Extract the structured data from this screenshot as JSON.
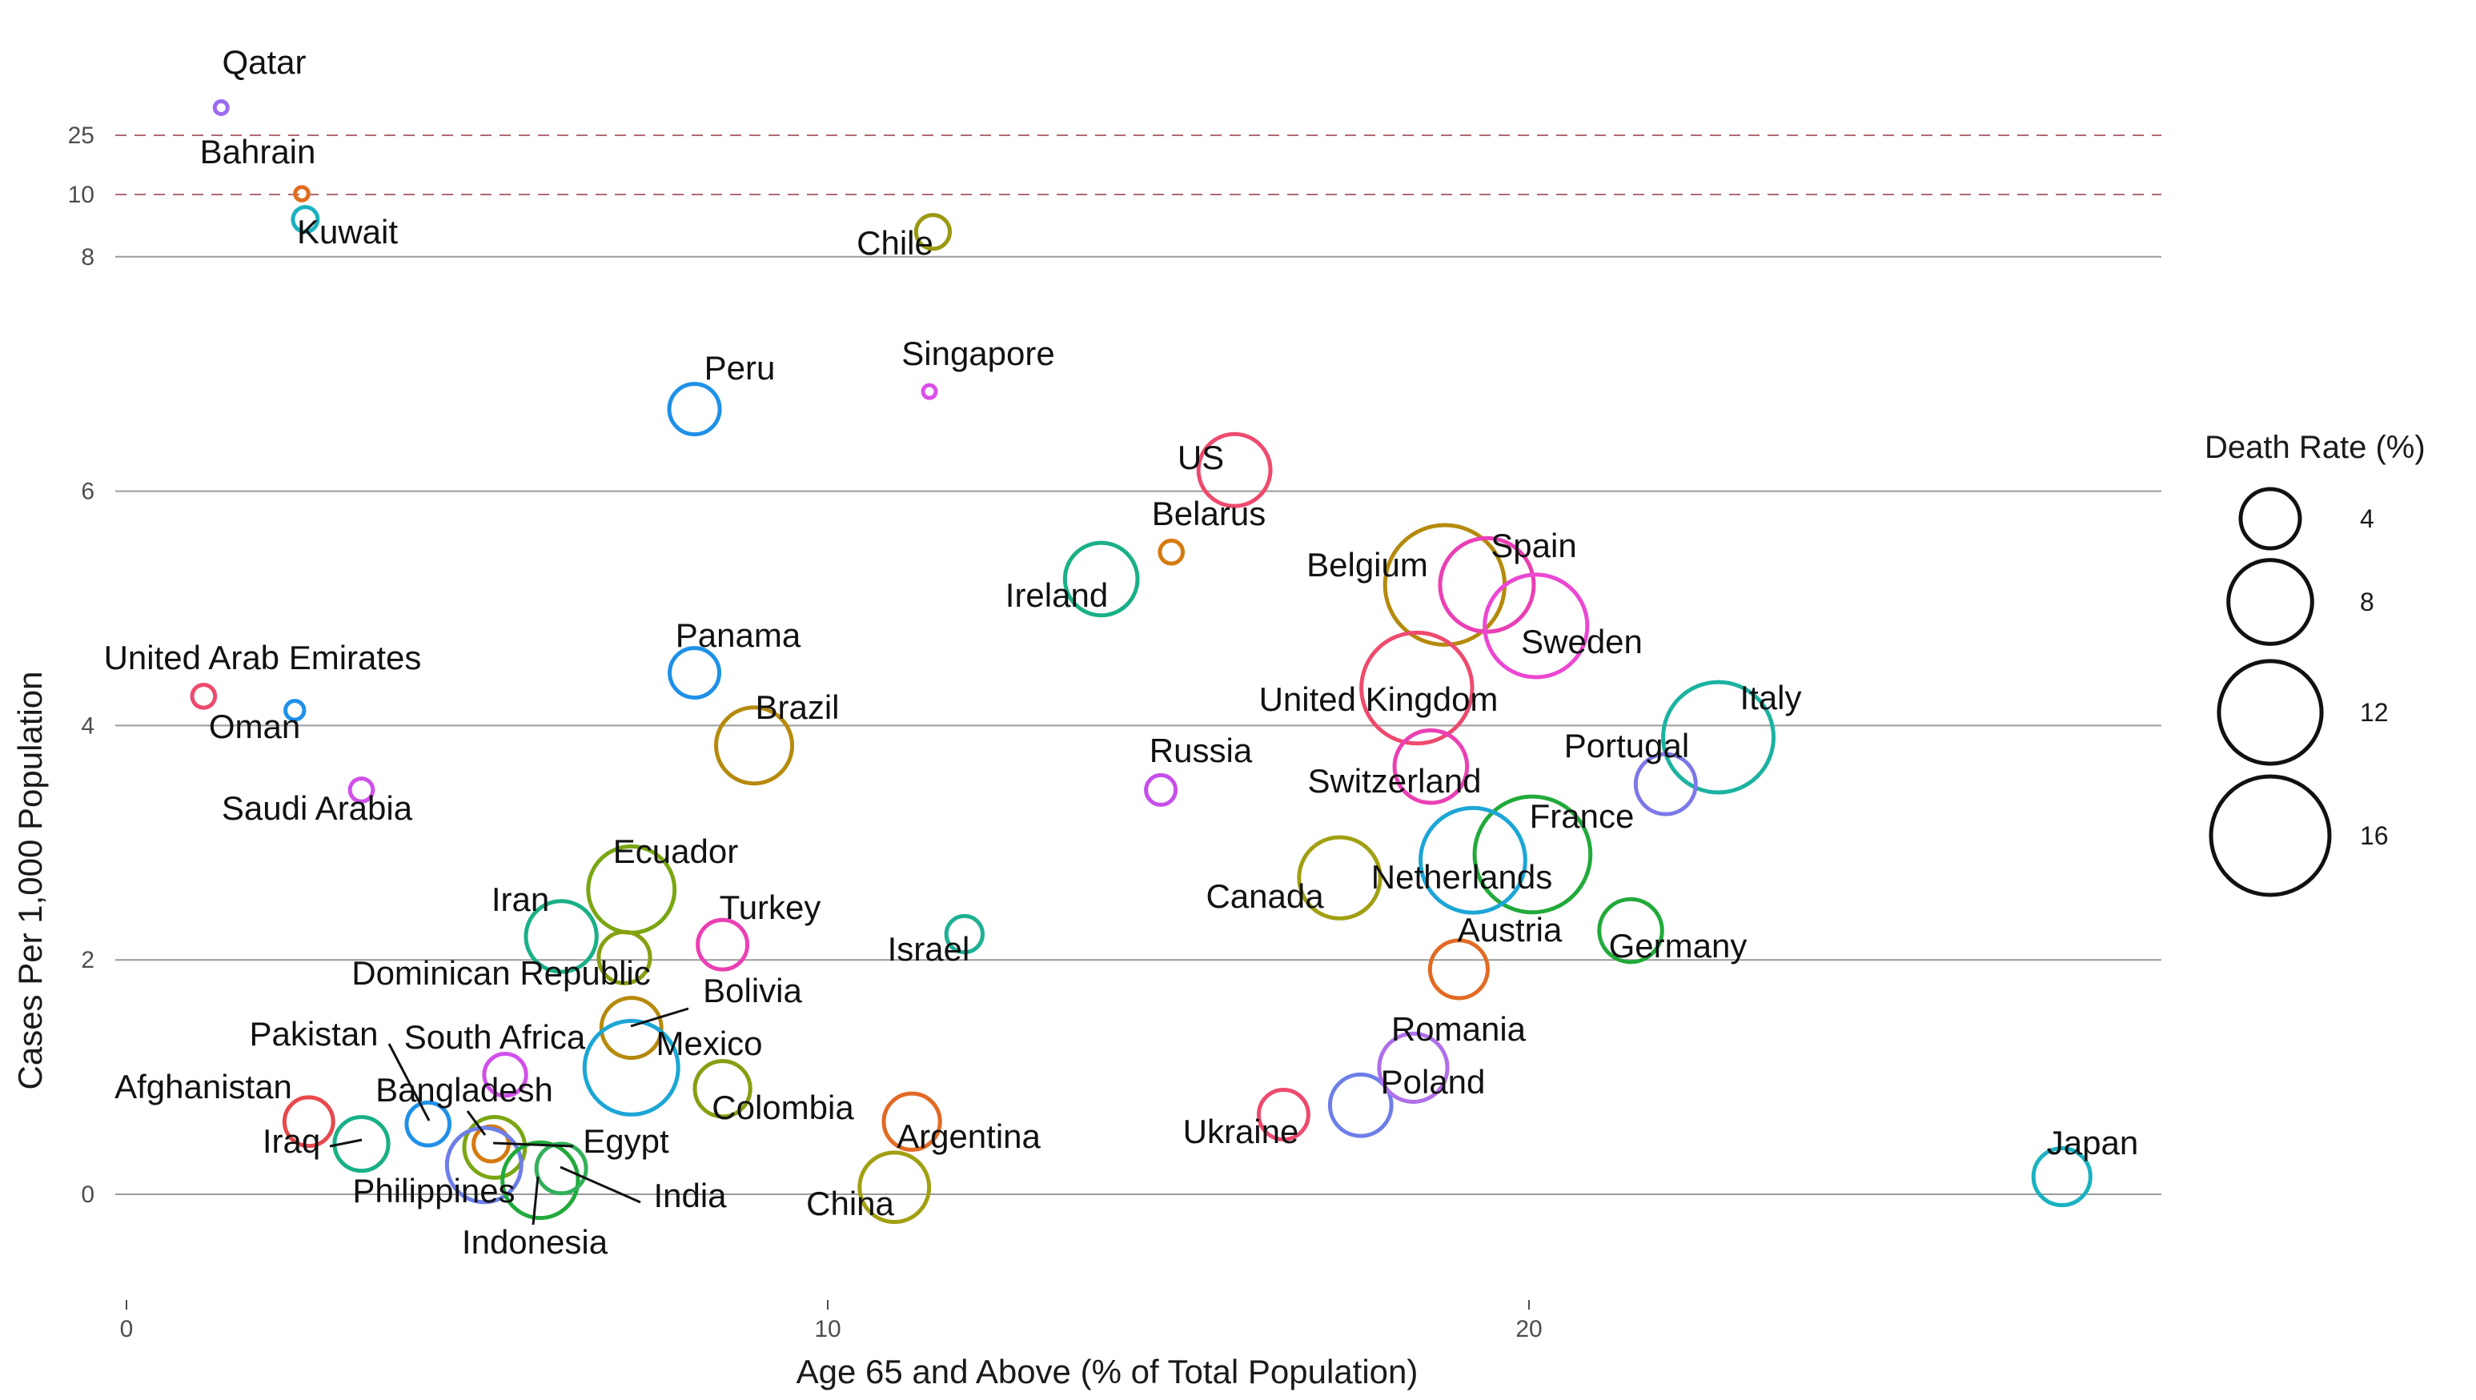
{
  "chart_data": {
    "type": "scatter",
    "xlabel": "Age 65 and Above (% of Total Population)",
    "ylabel": "Cases Per 1,000 Population",
    "xlim": [
      0,
      29
    ],
    "x_ticks": [
      0,
      10,
      20
    ],
    "y_ticks_linear": [
      0,
      2,
      4,
      6,
      8
    ],
    "y_ticks_upper": [
      10,
      25
    ],
    "y_scale_note": "broken axis: linear 0-8, compressed segment above 8 (8, 10, 25)",
    "dashed_reference_lines": [
      10,
      25
    ],
    "legend": {
      "title": "Death Rate (%)",
      "placement": "right",
      "sizes": [
        4,
        8,
        12,
        16
      ]
    },
    "points": [
      {
        "name": "Qatar",
        "x": 1.35,
        "y": 32.0,
        "death": 0.1,
        "color": "#9C6BF0"
      },
      {
        "name": "Bahrain",
        "x": 2.5,
        "y": 10.2,
        "death": 0.2,
        "color": "#E06C1F"
      },
      {
        "name": "Kuwait",
        "x": 2.55,
        "y": 9.2,
        "death": 0.7,
        "color": "#1BB2C0"
      },
      {
        "name": "Chile",
        "x": 11.5,
        "y": 8.8,
        "death": 1.3,
        "color": "#9A9A12"
      },
      {
        "name": "Singapore",
        "x": 11.45,
        "y": 6.85,
        "death": 0.1,
        "color": "#DA4FEA"
      },
      {
        "name": "Peru",
        "x": 8.1,
        "y": 6.7,
        "death": 2.9,
        "color": "#1E90E8"
      },
      {
        "name": "US",
        "x": 15.8,
        "y": 6.18,
        "death": 5.9,
        "color": "#EE4A6E"
      },
      {
        "name": "Belarus",
        "x": 14.9,
        "y": 5.48,
        "death": 0.6,
        "color": "#D57A0F"
      },
      {
        "name": "Ireland",
        "x": 13.9,
        "y": 5.25,
        "death": 6.0,
        "color": "#19B087"
      },
      {
        "name": "Belgium",
        "x": 18.8,
        "y": 5.2,
        "death": 16.3,
        "color": "#B58A0C"
      },
      {
        "name": "Spain",
        "x": 19.4,
        "y": 5.2,
        "death": 10.0,
        "color": "#EB3FB4"
      },
      {
        "name": "Sweden",
        "x": 20.1,
        "y": 4.85,
        "death": 12.0,
        "color": "#EC47D2"
      },
      {
        "name": "United Kingdom",
        "x": 18.4,
        "y": 4.32,
        "death": 14.0,
        "color": "#EE4A6E"
      },
      {
        "name": "Italy",
        "x": 22.7,
        "y": 3.9,
        "death": 13.9,
        "color": "#1BB2A0"
      },
      {
        "name": "Switzerland",
        "x": 18.6,
        "y": 3.65,
        "death": 6.0,
        "color": "#EB3FB4"
      },
      {
        "name": "Portugal",
        "x": 21.95,
        "y": 3.5,
        "death": 4.1,
        "color": "#7D78E8"
      },
      {
        "name": "Russia",
        "x": 14.75,
        "y": 3.45,
        "death": 1.0,
        "color": "#C54FEA"
      },
      {
        "name": "France",
        "x": 20.05,
        "y": 2.9,
        "death": 15.3,
        "color": "#21AA3A"
      },
      {
        "name": "Netherlands",
        "x": 19.2,
        "y": 2.85,
        "death": 12.5,
        "color": "#1BA6D6"
      },
      {
        "name": "Canada",
        "x": 17.3,
        "y": 2.7,
        "death": 7.5,
        "color": "#A0A012"
      },
      {
        "name": "Germany",
        "x": 21.45,
        "y": 2.25,
        "death": 4.5,
        "color": "#21AA3A"
      },
      {
        "name": "Austria",
        "x": 19.0,
        "y": 1.92,
        "death": 3.8,
        "color": "#E26A24"
      },
      {
        "name": "Israel",
        "x": 11.95,
        "y": 2.22,
        "death": 1.5,
        "color": "#1EB094"
      },
      {
        "name": "United Arab Emirates",
        "x": 1.1,
        "y": 4.25,
        "death": 0.6,
        "color": "#EE4A6E"
      },
      {
        "name": "Oman",
        "x": 2.4,
        "y": 4.13,
        "death": 0.4,
        "color": "#1E90E8"
      },
      {
        "name": "Panama",
        "x": 8.1,
        "y": 4.45,
        "death": 2.8,
        "color": "#1E90E8"
      },
      {
        "name": "Brazil",
        "x": 8.95,
        "y": 3.83,
        "death": 6.6,
        "color": "#B58A0C"
      },
      {
        "name": "Saudi Arabia",
        "x": 3.35,
        "y": 3.45,
        "death": 0.6,
        "color": "#D04FEA"
      },
      {
        "name": "Ecuador",
        "x": 7.2,
        "y": 2.6,
        "death": 8.5,
        "color": "#7AA612"
      },
      {
        "name": "Iran",
        "x": 6.2,
        "y": 2.2,
        "death": 5.7,
        "color": "#19B087"
      },
      {
        "name": "Turkey",
        "x": 8.5,
        "y": 2.13,
        "death": 2.8,
        "color": "#EB3FB4"
      },
      {
        "name": "Dominican Republic",
        "x": 7.1,
        "y": 2.02,
        "death": 3.0,
        "color": "#86A012"
      },
      {
        "name": "Bolivia",
        "x": 7.2,
        "y": 1.42,
        "death": 4.1,
        "color": "#B58A0C"
      },
      {
        "name": "Mexico",
        "x": 7.2,
        "y": 1.08,
        "death": 10.0,
        "color": "#1BA6D6"
      },
      {
        "name": "South Africa",
        "x": 5.4,
        "y": 1.02,
        "death": 2.0,
        "color": "#D04FEA"
      },
      {
        "name": "Colombia",
        "x": 8.5,
        "y": 0.9,
        "death": 3.5,
        "color": "#86A012"
      },
      {
        "name": "Pakistan",
        "x": 4.3,
        "y": 0.6,
        "death": 2.1,
        "color": "#1E90E8"
      },
      {
        "name": "Afghanistan",
        "x": 2.6,
        "y": 0.62,
        "death": 2.7,
        "color": "#E8484C"
      },
      {
        "name": "Iraq",
        "x": 3.35,
        "y": 0.43,
        "death": 3.3,
        "color": "#19B087"
      },
      {
        "name": "Bangladesh",
        "x": 5.2,
        "y": 0.43,
        "death": 1.4,
        "color": "#D57A0F"
      },
      {
        "name": "Egypt",
        "x": 5.25,
        "y": 0.4,
        "death": 4.2,
        "color": "#7AA612"
      },
      {
        "name": "Philippines",
        "x": 5.1,
        "y": 0.25,
        "death": 6.3,
        "color": "#6D7EE8"
      },
      {
        "name": "Indonesia",
        "x": 5.9,
        "y": 0.12,
        "death": 6.5,
        "color": "#21AA3A"
      },
      {
        "name": "India",
        "x": 6.2,
        "y": 0.22,
        "death": 2.8,
        "color": "#33B05A"
      },
      {
        "name": "Argentina",
        "x": 11.2,
        "y": 0.62,
        "death": 3.6,
        "color": "#E26A24"
      },
      {
        "name": "China",
        "x": 10.95,
        "y": 0.06,
        "death": 5.5,
        "color": "#A0A012"
      },
      {
        "name": "Ukraine",
        "x": 16.5,
        "y": 0.68,
        "death": 2.8,
        "color": "#EE4A6E"
      },
      {
        "name": "Poland",
        "x": 17.6,
        "y": 0.76,
        "death": 4.3,
        "color": "#6D7EE8"
      },
      {
        "name": "Romania",
        "x": 18.35,
        "y": 1.08,
        "death": 5.3,
        "color": "#B06FEA"
      },
      {
        "name": "Japan",
        "x": 27.6,
        "y": 0.15,
        "death": 3.7,
        "color": "#1BB2C0"
      }
    ]
  }
}
